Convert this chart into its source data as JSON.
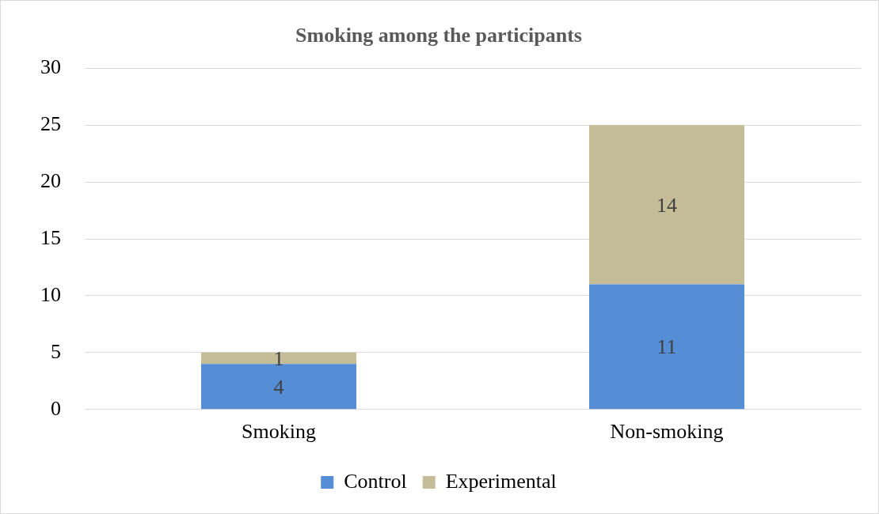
{
  "chart_data": {
    "type": "bar",
    "title": "Smoking among the participants",
    "categories": [
      "Smoking",
      "Non-smoking"
    ],
    "series": [
      {
        "name": "Control",
        "color": "#558ed5",
        "values": [
          4,
          11
        ]
      },
      {
        "name": "Experimental",
        "color": "#c4bd97",
        "values": [
          1,
          14
        ]
      }
    ],
    "stacked": true,
    "ylim": [
      0,
      30
    ],
    "yticks": [
      0,
      5,
      10,
      15,
      20,
      25,
      30
    ],
    "grid": "y",
    "legend": "bottom",
    "data_labels": true
  }
}
